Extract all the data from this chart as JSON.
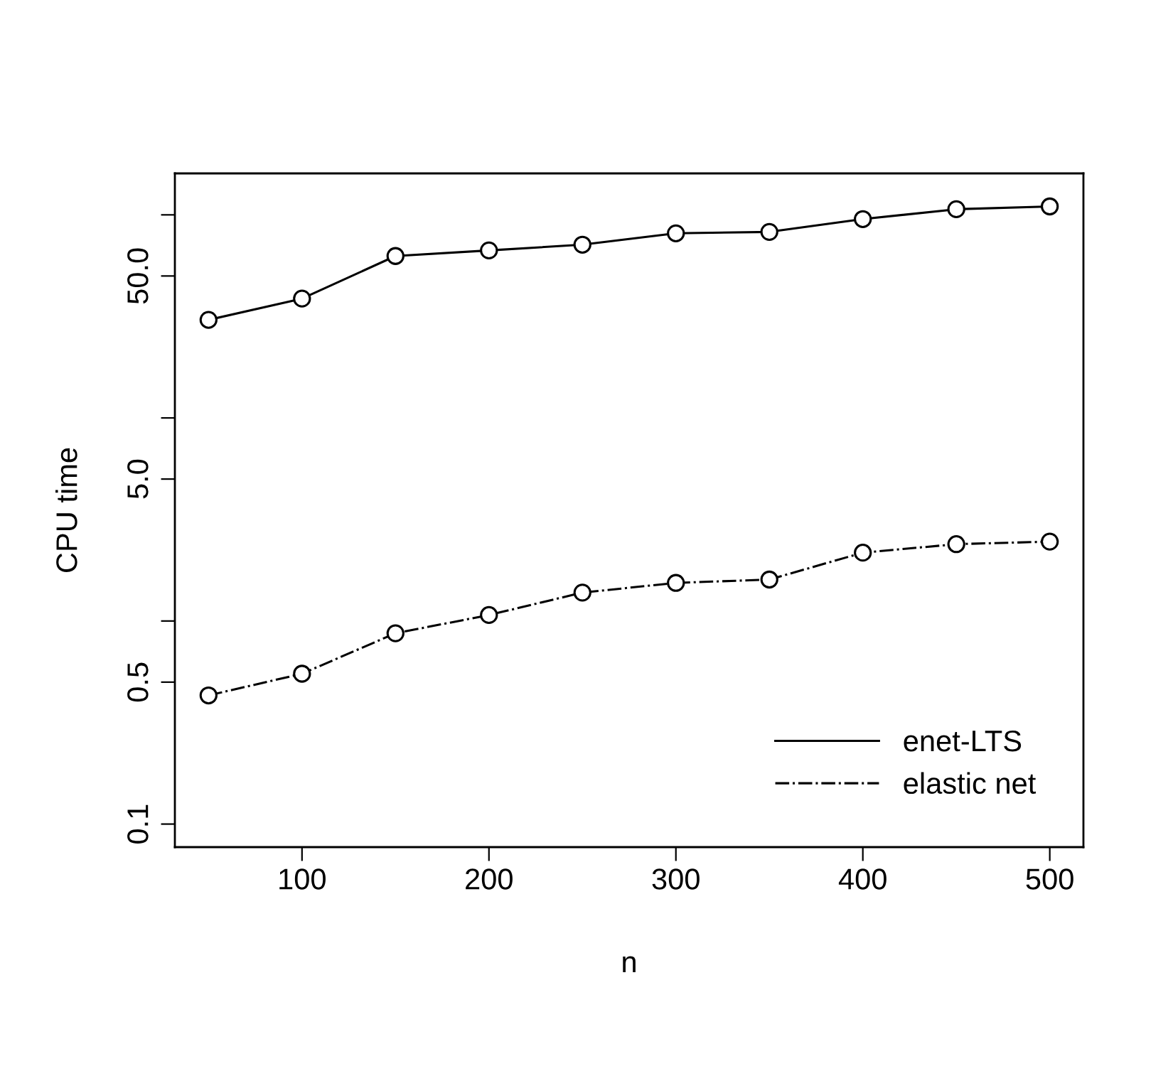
{
  "chart_data": {
    "type": "line",
    "xlabel": "n",
    "ylabel": "CPU time",
    "x": [
      50,
      100,
      150,
      200,
      250,
      300,
      350,
      400,
      450,
      500
    ],
    "series": [
      {
        "name": "enet-LTS",
        "color": "#000000",
        "line_style": "solid",
        "values": [
          30.4,
          38.7,
          62.7,
          66.8,
          71.3,
          81.1,
          82.4,
          95.3,
          106.6,
          110
        ]
      },
      {
        "name": "elastic net",
        "color": "#000000",
        "line_style": "dashdot",
        "values": [
          0.43,
          0.55,
          0.87,
          1.07,
          1.38,
          1.54,
          1.6,
          2.17,
          2.39,
          2.46
        ]
      }
    ],
    "log": "y",
    "xlim": [
      32,
      518
    ],
    "ylim": [
      0.077,
      160
    ],
    "xticks": [
      100,
      200,
      300,
      400,
      500
    ],
    "yticks": [
      0.1,
      0.5,
      {
        "value": 1,
        "label": null
      },
      {
        "value": 5,
        "label": "5.0"
      },
      {
        "value": 10,
        "label": null
      },
      {
        "value": 50,
        "label": "50.0"
      },
      {
        "value": 100,
        "label": null
      }
    ],
    "marker": "circle",
    "grid": false,
    "legend": "bottom right"
  }
}
